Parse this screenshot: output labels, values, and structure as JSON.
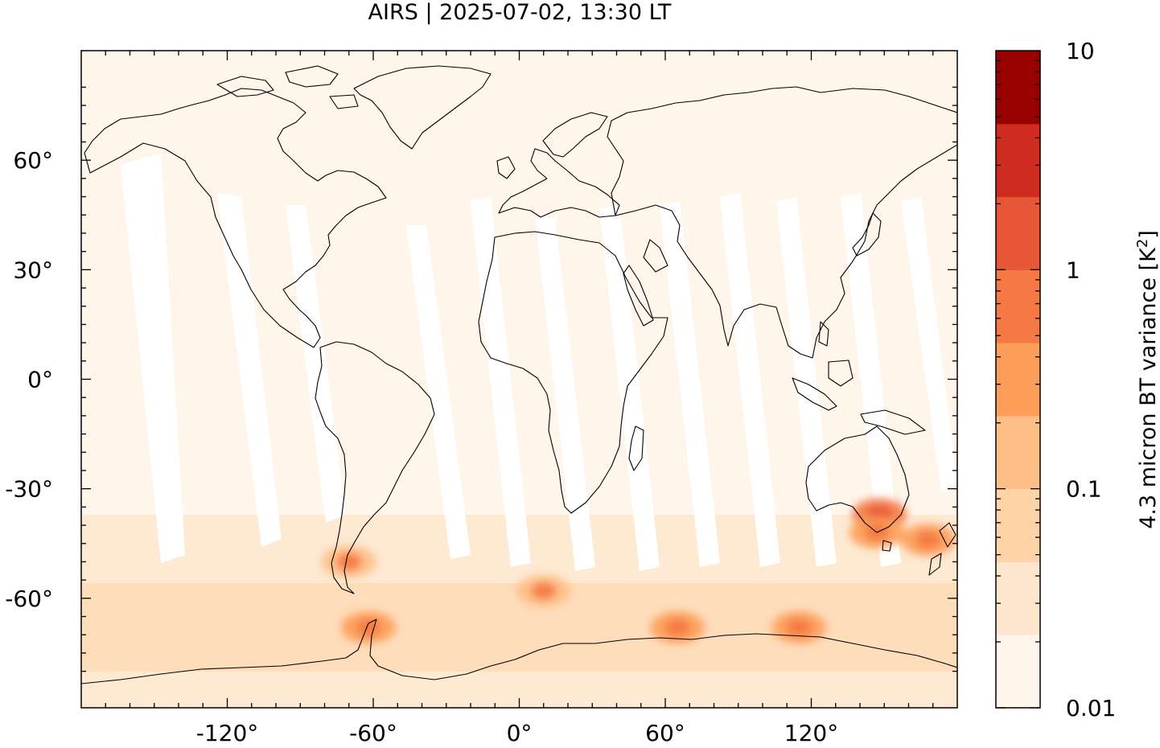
{
  "title": "AIRS | 2025-07-02, 13:30 LT",
  "map": {
    "projection": "equirectangular",
    "lon_range": [
      -180,
      180
    ],
    "lat_range": [
      -90,
      90
    ],
    "x_ticks": [
      {
        "value": -120,
        "label": "-120°"
      },
      {
        "value": -60,
        "label": "-60°"
      },
      {
        "value": 0,
        "label": "0°"
      },
      {
        "value": 60,
        "label": "60°"
      },
      {
        "value": 120,
        "label": "120°"
      }
    ],
    "y_ticks": [
      {
        "value": 60,
        "label": "60°"
      },
      {
        "value": 30,
        "label": "30°"
      },
      {
        "value": 0,
        "label": "0°"
      },
      {
        "value": -30,
        "label": "-30°"
      },
      {
        "value": -60,
        "label": "-60°"
      }
    ],
    "background_color": "#fff5eb",
    "coastline_color": "#000000",
    "data_gaps": "white diagonal swath gaps between orbits, equatorward of about 45°S",
    "hotspots": [
      {
        "region": "Southern Andes / Patagonia",
        "lon": -70,
        "lat": -50,
        "level": 0.5
      },
      {
        "region": "Antarctic Peninsula",
        "lon": -62,
        "lat": -68,
        "level": 0.6
      },
      {
        "region": "Southern Ocean south of Africa",
        "lon": 10,
        "lat": -58,
        "level": 0.5
      },
      {
        "region": "Southern Ocean near Kerguelen",
        "lon": 65,
        "lat": -68,
        "level": 0.8
      },
      {
        "region": "Southern Ocean south of Australia",
        "lon": 115,
        "lat": -68,
        "level": 0.7
      },
      {
        "region": "Southeast Australia",
        "lon": 148,
        "lat": -37,
        "level": 1.2
      },
      {
        "region": "Tasmania",
        "lon": 147,
        "lat": -42,
        "level": 0.6
      },
      {
        "region": "New Zealand",
        "lon": 168,
        "lat": -44,
        "level": 0.6
      }
    ]
  },
  "colorbar": {
    "label_main": "4.3 micron BT variance [K",
    "label_sup": "2",
    "label_end": "]",
    "scale": "log",
    "range": [
      0.01,
      10
    ],
    "ticks": [
      {
        "value": 10,
        "label": "10"
      },
      {
        "value": 1,
        "label": "1"
      },
      {
        "value": 0.1,
        "label": "0.1"
      },
      {
        "value": 0.01,
        "label": "0.01"
      }
    ],
    "colors": [
      "#fff5eb",
      "#fee6ce",
      "#fdd3a7",
      "#fdbf86",
      "#fd9e5a",
      "#f57a45",
      "#e75637",
      "#cf2b1f",
      "#990000"
    ]
  }
}
